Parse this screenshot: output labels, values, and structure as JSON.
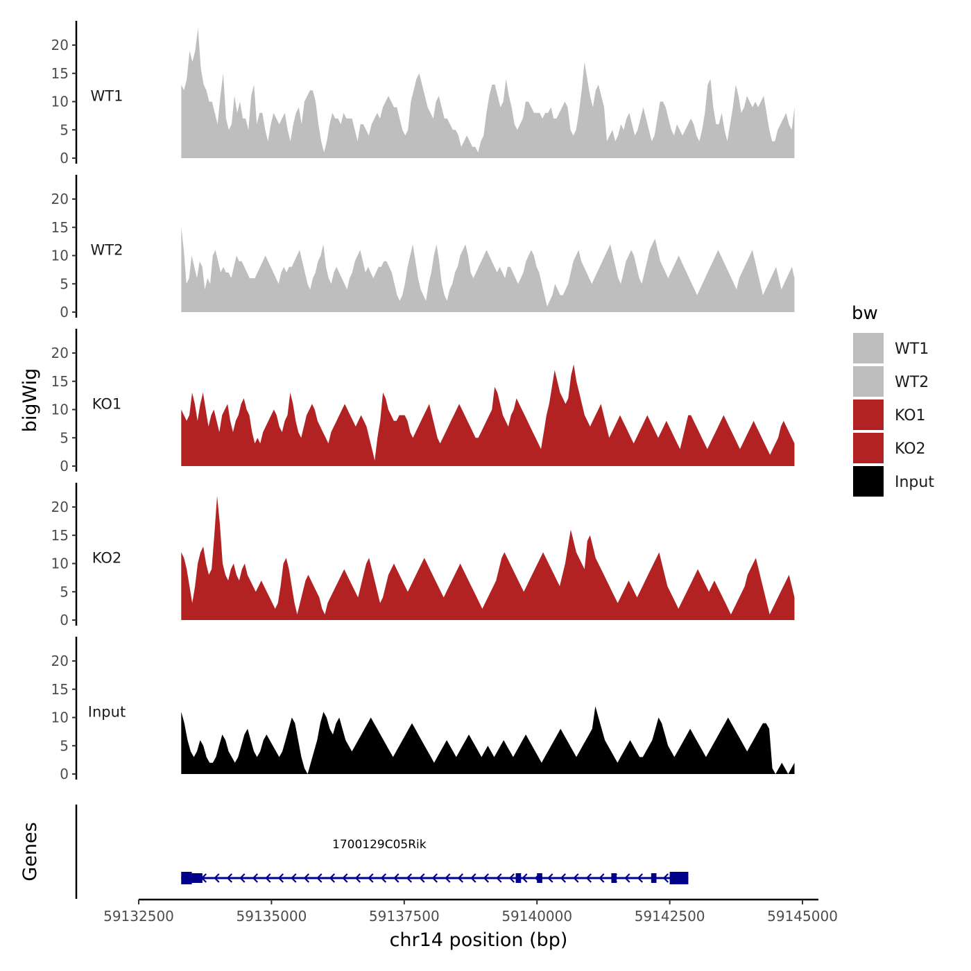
{
  "chart_data": {
    "type": "area",
    "ylabel": "bigWig",
    "xlabel": "chr14 position (bp)",
    "region": [
      59133300,
      59144850
    ],
    "xlim": [
      59132500,
      59145300
    ],
    "x_ticks": [
      59132500,
      59135000,
      59137500,
      59140000,
      59142500,
      59145000
    ],
    "x_tick_labels": [
      "59132500",
      "59135000",
      "59137500",
      "59140000",
      "59142500",
      "59145000"
    ],
    "ylim": [
      0,
      24
    ],
    "y_ticks": [
      0,
      5,
      10,
      15,
      20
    ],
    "y_tick_labels": [
      "0",
      "5",
      "10",
      "15",
      "20"
    ],
    "colors": {
      "grey": "#bebebe",
      "red": "#b22222",
      "black": "#000000",
      "gene": "#00008b",
      "axis": "#000000"
    },
    "legend": {
      "title": "bw",
      "entries": [
        {
          "label": "WT1",
          "color": "#bebebe"
        },
        {
          "label": "WT2",
          "color": "#bebebe"
        },
        {
          "label": "KO1",
          "color": "#b22222"
        },
        {
          "label": "KO2",
          "color": "#b22222"
        },
        {
          "label": "Input",
          "color": "#000000"
        }
      ]
    },
    "series": [
      {
        "name": "WT1",
        "color": "#bebebe",
        "values": [
          13,
          12,
          14,
          19,
          17,
          19,
          23,
          16,
          13,
          12,
          10,
          10,
          8,
          6,
          11,
          15,
          7,
          5,
          6,
          11,
          8,
          10,
          7,
          7,
          5,
          11,
          13,
          6,
          8,
          8,
          5,
          3,
          6,
          8,
          7,
          6,
          7,
          8,
          5,
          3,
          6,
          8,
          9,
          6,
          10,
          11,
          12,
          12,
          10,
          6,
          3,
          1,
          3,
          6,
          8,
          7,
          7,
          6,
          8,
          7,
          7,
          7,
          5,
          3,
          6,
          6,
          5,
          4,
          6,
          7,
          8,
          7,
          9,
          10,
          11,
          10,
          9,
          9,
          7,
          5,
          4,
          5,
          10,
          12,
          14,
          15,
          13,
          11,
          9,
          8,
          7,
          10,
          11,
          9,
          7,
          7,
          6,
          5,
          5,
          4,
          2,
          3,
          4,
          3,
          2,
          2,
          1,
          3,
          4,
          8,
          11,
          13,
          13,
          11,
          9,
          10,
          14,
          11,
          9,
          6,
          5,
          6,
          7,
          10,
          10,
          9,
          8,
          8,
          8,
          7,
          8,
          8,
          9,
          7,
          7,
          8,
          9,
          10,
          9,
          5,
          4,
          5,
          8,
          12,
          17,
          14,
          11,
          9,
          12,
          13,
          11,
          9,
          3,
          4,
          5,
          3,
          4,
          6,
          5,
          7,
          8,
          6,
          4,
          5,
          7,
          9,
          7,
          5,
          3,
          4,
          7,
          10,
          10,
          9,
          7,
          5,
          4,
          6,
          5,
          4,
          5,
          6,
          7,
          6,
          4,
          3,
          5,
          8,
          13,
          14,
          9,
          6,
          6,
          8,
          5,
          3,
          6,
          9,
          13,
          11,
          8,
          9,
          11,
          10,
          9,
          10,
          9,
          10,
          11,
          8,
          5,
          3,
          3,
          5,
          6,
          7,
          8,
          6,
          5,
          9
        ],
        "label_pos": [
          59133700,
          2
        ]
      },
      {
        "name": "WT2",
        "color": "#bebebe",
        "values": [
          15,
          11,
          5,
          6,
          10,
          8,
          6,
          9,
          8,
          4,
          6,
          5,
          10,
          11,
          9,
          7,
          8,
          7,
          7,
          6,
          8,
          10,
          9,
          9,
          8,
          7,
          6,
          6,
          6,
          7,
          8,
          9,
          10,
          9,
          8,
          7,
          6,
          5,
          7,
          8,
          7,
          8,
          8,
          9,
          10,
          11,
          9,
          7,
          5,
          4,
          6,
          7,
          9,
          10,
          12,
          8,
          6,
          5,
          7,
          8,
          7,
          6,
          5,
          4,
          6,
          7,
          9,
          10,
          11,
          9,
          7,
          8,
          7,
          6,
          7,
          8,
          8,
          9,
          9,
          8,
          7,
          5,
          3,
          2,
          3,
          5,
          8,
          10,
          12,
          9,
          6,
          4,
          3,
          2,
          5,
          7,
          10,
          12,
          9,
          5,
          3,
          2,
          4,
          5,
          7,
          8,
          10,
          11,
          12,
          10,
          7,
          6,
          7,
          8,
          9,
          10,
          11,
          10,
          9,
          8,
          7,
          8,
          7,
          6,
          8,
          8,
          7,
          6,
          5,
          6,
          7,
          9,
          10,
          11,
          10,
          8,
          7,
          5,
          3,
          1,
          2,
          3,
          5,
          4,
          3,
          3,
          4,
          5,
          7,
          9,
          10,
          11,
          9,
          8,
          7,
          6,
          5,
          6,
          7,
          8,
          9,
          10,
          11,
          12,
          10,
          8,
          6,
          5,
          7,
          9,
          10,
          11,
          10,
          8,
          6,
          5,
          7,
          9,
          11,
          12,
          13,
          11,
          9,
          8,
          7,
          6,
          7,
          8,
          9,
          10,
          9,
          8,
          7,
          6,
          5,
          4,
          3,
          4,
          5,
          6,
          7,
          8,
          9,
          10,
          11,
          10,
          9,
          8,
          7,
          6,
          5,
          4,
          6,
          7,
          8,
          9,
          10,
          11,
          9,
          7,
          5,
          3,
          4,
          5,
          6,
          7,
          8,
          6,
          4,
          5,
          6,
          7,
          8,
          6
        ],
        "label_pos": [
          59133700,
          2
        ]
      },
      {
        "name": "KO1",
        "color": "#b22222",
        "values": [
          10,
          9,
          8,
          9,
          13,
          11,
          8,
          11,
          13,
          10,
          7,
          9,
          10,
          8,
          6,
          9,
          10,
          11,
          8,
          6,
          8,
          9,
          11,
          12,
          10,
          9,
          6,
          4,
          5,
          4,
          6,
          7,
          8,
          9,
          10,
          9,
          7,
          6,
          8,
          9,
          13,
          11,
          8,
          6,
          5,
          7,
          9,
          10,
          11,
          10,
          8,
          7,
          6,
          5,
          4,
          6,
          7,
          8,
          9,
          10,
          11,
          10,
          9,
          8,
          7,
          8,
          9,
          8,
          7,
          5,
          3,
          1,
          5,
          8,
          13,
          12,
          10,
          9,
          8,
          8,
          9,
          9,
          9,
          8,
          6,
          5,
          6,
          7,
          8,
          9,
          10,
          11,
          9,
          7,
          5,
          4,
          5,
          6,
          7,
          8,
          9,
          10,
          11,
          10,
          9,
          8,
          7,
          6,
          5,
          5,
          6,
          7,
          8,
          9,
          10,
          14,
          13,
          11,
          9,
          8,
          7,
          9,
          10,
          12,
          11,
          10,
          9,
          8,
          7,
          6,
          5,
          4,
          3,
          6,
          9,
          11,
          14,
          17,
          15,
          13,
          12,
          11,
          12,
          16,
          18,
          15,
          13,
          11,
          9,
          8,
          7,
          8,
          9,
          10,
          11,
          9,
          7,
          5,
          6,
          7,
          8,
          9,
          8,
          7,
          6,
          5,
          4,
          5,
          6,
          7,
          8,
          9,
          8,
          7,
          6,
          5,
          6,
          7,
          8,
          7,
          6,
          5,
          4,
          3,
          5,
          7,
          9,
          9,
          8,
          7,
          6,
          5,
          4,
          3,
          4,
          5,
          6,
          7,
          8,
          9,
          8,
          7,
          6,
          5,
          4,
          3,
          4,
          5,
          6,
          7,
          8,
          7,
          6,
          5,
          4,
          3,
          2,
          3,
          4,
          5,
          7,
          8,
          7,
          6,
          5,
          4
        ],
        "label_pos": [
          59133700,
          2
        ]
      },
      {
        "name": "KO2",
        "color": "#b22222",
        "values": [
          12,
          11,
          9,
          6,
          3,
          6,
          10,
          12,
          13,
          10,
          8,
          9,
          15,
          22,
          17,
          10,
          8,
          7,
          9,
          10,
          8,
          7,
          9,
          10,
          8,
          7,
          6,
          5,
          6,
          7,
          6,
          5,
          4,
          3,
          2,
          3,
          6,
          10,
          11,
          9,
          6,
          3,
          1,
          3,
          5,
          7,
          8,
          7,
          6,
          5,
          4,
          2,
          1,
          3,
          4,
          5,
          6,
          7,
          8,
          9,
          8,
          7,
          6,
          5,
          4,
          6,
          8,
          10,
          11,
          9,
          7,
          5,
          3,
          4,
          6,
          8,
          9,
          10,
          9,
          8,
          7,
          6,
          5,
          6,
          7,
          8,
          9,
          10,
          11,
          10,
          9,
          8,
          7,
          6,
          5,
          4,
          5,
          6,
          7,
          8,
          9,
          10,
          9,
          8,
          7,
          6,
          5,
          4,
          3,
          2,
          3,
          4,
          5,
          6,
          7,
          9,
          11,
          12,
          11,
          10,
          9,
          8,
          7,
          6,
          5,
          6,
          7,
          8,
          9,
          10,
          11,
          12,
          11,
          10,
          9,
          8,
          7,
          6,
          8,
          10,
          13,
          16,
          14,
          12,
          11,
          10,
          9,
          14,
          15,
          13,
          11,
          10,
          9,
          8,
          7,
          6,
          5,
          4,
          3,
          4,
          5,
          6,
          7,
          6,
          5,
          4,
          5,
          6,
          7,
          8,
          9,
          10,
          11,
          12,
          10,
          8,
          6,
          5,
          4,
          3,
          2,
          3,
          4,
          5,
          6,
          7,
          8,
          9,
          8,
          7,
          6,
          5,
          6,
          7,
          6,
          5,
          4,
          3,
          2,
          1,
          2,
          3,
          4,
          5,
          6,
          8,
          9,
          10,
          11,
          9,
          7,
          5,
          3,
          1,
          2,
          3,
          4,
          5,
          6,
          7,
          8,
          6,
          4
        ],
        "label_pos": [
          59133700,
          2
        ]
      },
      {
        "name": "Input",
        "color": "#000000",
        "values": [
          11,
          9,
          6,
          4,
          3,
          4,
          6,
          5,
          3,
          2,
          2,
          3,
          5,
          7,
          6,
          4,
          3,
          2,
          3,
          5,
          7,
          8,
          6,
          4,
          3,
          4,
          6,
          7,
          6,
          5,
          4,
          3,
          4,
          6,
          8,
          10,
          9,
          6,
          3,
          1,
          0,
          2,
          4,
          6,
          9,
          11,
          10,
          8,
          7,
          9,
          10,
          8,
          6,
          5,
          4,
          5,
          6,
          7,
          8,
          9,
          10,
          9,
          8,
          7,
          6,
          5,
          4,
          3,
          4,
          5,
          6,
          7,
          8,
          9,
          8,
          7,
          6,
          5,
          4,
          3,
          2,
          3,
          4,
          5,
          6,
          5,
          4,
          3,
          4,
          5,
          6,
          7,
          6,
          5,
          4,
          3,
          4,
          5,
          4,
          3,
          4,
          5,
          6,
          5,
          4,
          3,
          4,
          5,
          6,
          7,
          6,
          5,
          4,
          3,
          2,
          3,
          4,
          5,
          6,
          7,
          8,
          7,
          6,
          5,
          4,
          3,
          4,
          5,
          6,
          7,
          8,
          12,
          10,
          8,
          6,
          5,
          4,
          3,
          2,
          3,
          4,
          5,
          6,
          5,
          4,
          3,
          3,
          4,
          5,
          6,
          8,
          10,
          9,
          7,
          5,
          4,
          3,
          4,
          5,
          6,
          7,
          8,
          7,
          6,
          5,
          4,
          3,
          4,
          5,
          6,
          7,
          8,
          9,
          10,
          9,
          8,
          7,
          6,
          5,
          4,
          5,
          6,
          7,
          8,
          9,
          9,
          8,
          1,
          0,
          1,
          2,
          1,
          0,
          1,
          2
        ],
        "label_pos": [
          59133700,
          2
        ]
      }
    ],
    "genes_panel": {
      "label": "Genes",
      "gene": {
        "name": "1700129C05Rik",
        "start": 59133300,
        "end": 59142850,
        "strand": "-",
        "exons": [
          [
            59133300,
            59133500
          ],
          [
            59133500,
            59133700
          ],
          [
            59139600,
            59139700
          ],
          [
            59140000,
            59140100
          ],
          [
            59141400,
            59141500
          ],
          [
            59142150,
            59142250
          ],
          [
            59142500,
            59142850
          ]
        ]
      }
    }
  }
}
